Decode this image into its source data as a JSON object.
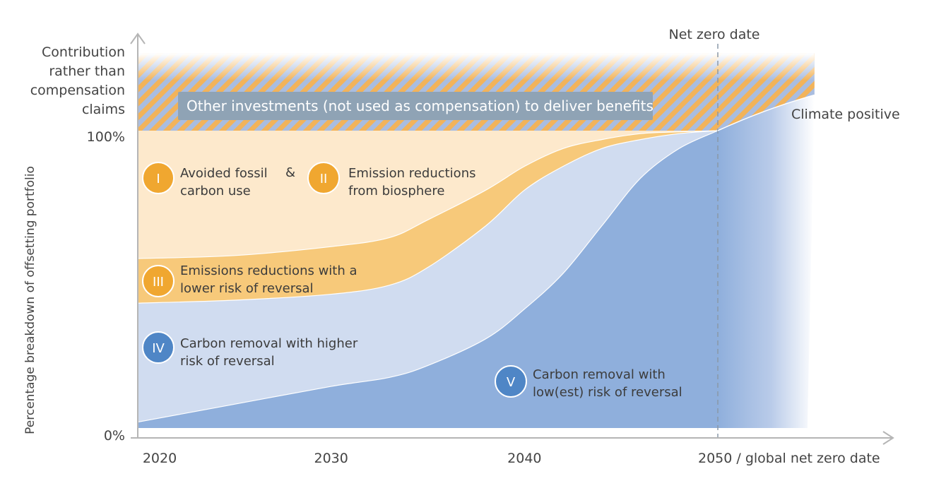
{
  "chart_data": {
    "type": "area",
    "stacked": true,
    "percent": true,
    "x": [
      2020,
      2025,
      2030,
      2033,
      2035,
      2038,
      2040,
      2042,
      2044,
      2046,
      2048,
      2050
    ],
    "xlim": [
      2020,
      2055
    ],
    "ylim": [
      0,
      100
    ],
    "xticks": [
      {
        "value": 2020,
        "label": "2020"
      },
      {
        "value": 2030,
        "label": "2030"
      },
      {
        "value": 2040,
        "label": "2040"
      },
      {
        "value": 2050,
        "label": "2050 / global net zero date"
      }
    ],
    "yticks": [
      {
        "value": 0,
        "label": "0%"
      },
      {
        "value": 100,
        "label": "100%"
      }
    ],
    "ylabel": "Percentage breakdown of offsetting portfolio",
    "contribution_label": [
      "Contribution",
      "rather than",
      "compensation",
      "claims"
    ],
    "series": [
      {
        "badge": "V",
        "label": [
          "Carbon removal with",
          "low(est) risk of reversal"
        ],
        "color": "#8fafdc",
        "cumulative": [
          2,
          8,
          14,
          17,
          21,
          30,
          40,
          52,
          68,
          84,
          94,
          100
        ]
      },
      {
        "badge": "IV",
        "label": [
          "Carbon removal with higher",
          "risk of reversal"
        ],
        "color": "#d0dcf0",
        "cumulative": [
          42,
          43,
          45,
          48,
          54,
          68,
          80,
          88,
          94,
          97,
          99,
          100
        ]
      },
      {
        "badge": "III",
        "label": [
          "Emissions reductions with a",
          "lower risk of reversal"
        ],
        "color": "#f7c97a",
        "cumulative": [
          57,
          58,
          61,
          64,
          70,
          80,
          88,
          94,
          97,
          99,
          99.6,
          100
        ]
      },
      {
        "badge": "I",
        "label": [
          "Avoided fossil",
          "carbon use"
        ],
        "color": "#fde9cc",
        "cumulative": [
          100,
          100,
          100,
          100,
          100,
          100,
          100,
          100,
          100,
          100,
          100,
          100
        ]
      }
    ],
    "joined_label": {
      "connector": "&",
      "badge": "II",
      "label": [
        "Emission reductions",
        "from biosphere"
      ]
    },
    "banner": "Other investments (not used as compensation) to deliver benefits",
    "net_zero_label": "Net zero date",
    "climate_positive_label": "Climate positive",
    "beyond": {
      "x": [
        2050,
        2055
      ],
      "y": [
        100,
        112
      ]
    },
    "contribution_top": 126,
    "colors": {
      "stripe_orange": "#f2b35a",
      "stripe_blue": "#a9bde0",
      "badge_orange": "#f0a730",
      "badge_blue": "#4f86c6",
      "banner_bg": "#8fa3b5",
      "axis": "#b5b5b5",
      "netzero_line": "#8a98a8"
    }
  }
}
